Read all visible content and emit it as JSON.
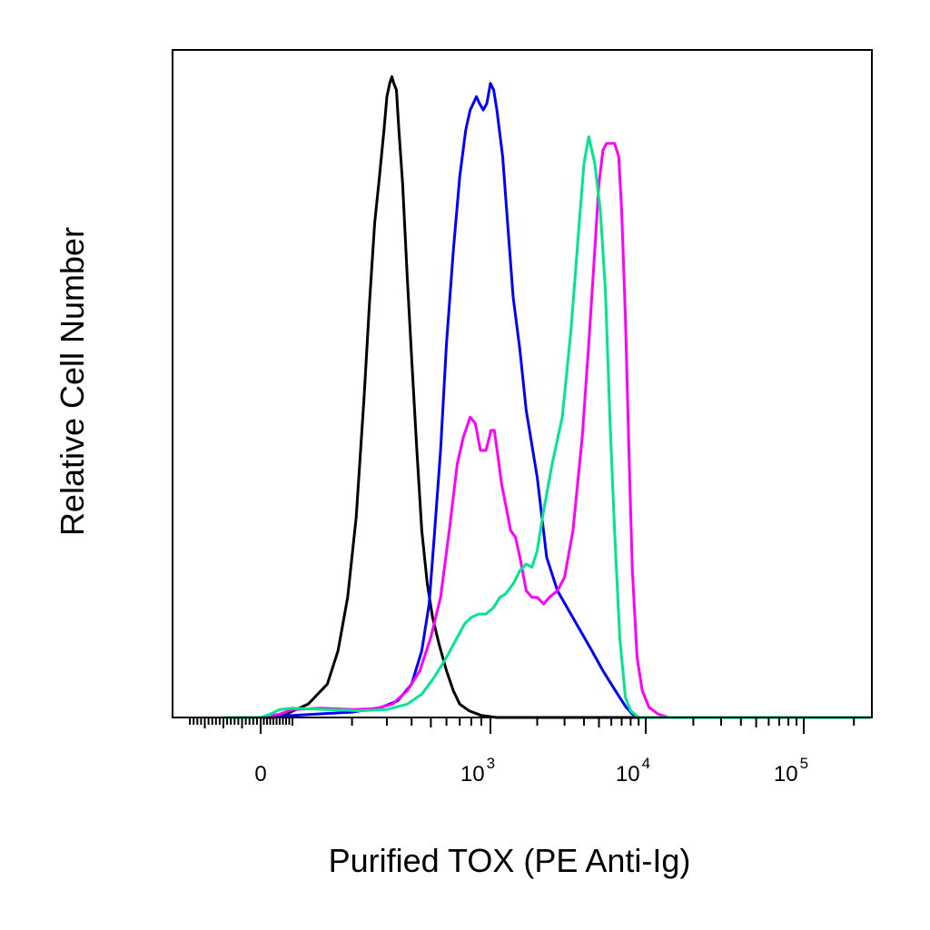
{
  "chart_data": {
    "type": "line",
    "chart_kind": "flow cytometry histogram overlay",
    "title": "",
    "xlabel": "Purified TOX (PE Anti-Ig)",
    "ylabel": "Relative Cell Number",
    "x_scale": "biexponential (logicle)",
    "xlim": [
      -200,
      250000
    ],
    "ylim": [
      0,
      100
    ],
    "grid": false,
    "legend": "none",
    "x_ticks": [
      {
        "value": 0,
        "label": "0"
      },
      {
        "value": 1000,
        "base": "10",
        "exp": "3"
      },
      {
        "value": 10000,
        "base": "10",
        "exp": "4"
      },
      {
        "value": 100000,
        "base": "10",
        "exp": "5"
      }
    ],
    "series": [
      {
        "color": "#000000",
        "points": [
          [
            -100,
            0
          ],
          [
            0,
            0
          ],
          [
            40,
            0
          ],
          [
            80,
            0.5
          ],
          [
            120,
            2
          ],
          [
            150,
            5
          ],
          [
            170,
            10
          ],
          [
            190,
            18
          ],
          [
            210,
            30
          ],
          [
            230,
            48
          ],
          [
            245,
            62
          ],
          [
            260,
            74
          ],
          [
            275,
            81
          ],
          [
            290,
            88
          ],
          [
            300,
            93
          ],
          [
            310,
            95
          ],
          [
            318,
            96
          ],
          [
            325,
            95
          ],
          [
            335,
            94
          ],
          [
            345,
            88
          ],
          [
            360,
            80
          ],
          [
            380,
            66
          ],
          [
            400,
            54
          ],
          [
            425,
            40
          ],
          [
            450,
            28
          ],
          [
            480,
            20
          ],
          [
            510,
            15
          ],
          [
            550,
            11
          ],
          [
            600,
            7
          ],
          [
            650,
            4
          ],
          [
            700,
            2
          ],
          [
            780,
            1
          ],
          [
            900,
            0.3
          ],
          [
            1100,
            0
          ],
          [
            250000,
            0
          ]
        ]
      },
      {
        "color": "#0000ff",
        "points": [
          [
            -100,
            0
          ],
          [
            0,
            0
          ],
          [
            100,
            0.3
          ],
          [
            200,
            0.8
          ],
          [
            280,
            1.5
          ],
          [
            340,
            2.5
          ],
          [
            400,
            5
          ],
          [
            450,
            10
          ],
          [
            490,
            17
          ],
          [
            520,
            27
          ],
          [
            560,
            40
          ],
          [
            600,
            56
          ],
          [
            650,
            70
          ],
          [
            700,
            81
          ],
          [
            750,
            88
          ],
          [
            790,
            91
          ],
          [
            820,
            92
          ],
          [
            850,
            93
          ],
          [
            880,
            92
          ],
          [
            920,
            91
          ],
          [
            960,
            92
          ],
          [
            1000,
            95
          ],
          [
            1050,
            94
          ],
          [
            1100,
            91
          ],
          [
            1200,
            84
          ],
          [
            1300,
            73
          ],
          [
            1400,
            63
          ],
          [
            1550,
            55
          ],
          [
            1700,
            46
          ],
          [
            2000,
            36
          ],
          [
            2300,
            24
          ],
          [
            2700,
            19
          ],
          [
            3200,
            16
          ],
          [
            3800,
            13
          ],
          [
            4500,
            10
          ],
          [
            5300,
            7
          ],
          [
            6000,
            5
          ],
          [
            6800,
            3
          ],
          [
            7500,
            1.5
          ],
          [
            8200,
            0.5
          ],
          [
            9000,
            0
          ],
          [
            250000,
            0
          ]
        ]
      },
      {
        "color": "#ff00ff",
        "points": [
          [
            -100,
            0
          ],
          [
            0,
            0
          ],
          [
            60,
            0.5
          ],
          [
            100,
            1.2
          ],
          [
            140,
            1.4
          ],
          [
            200,
            1.2
          ],
          [
            260,
            1.3
          ],
          [
            320,
            2
          ],
          [
            380,
            4
          ],
          [
            440,
            7
          ],
          [
            500,
            12
          ],
          [
            560,
            18
          ],
          [
            620,
            28
          ],
          [
            680,
            38
          ],
          [
            730,
            42
          ],
          [
            790,
            45
          ],
          [
            840,
            44
          ],
          [
            890,
            40
          ],
          [
            950,
            40
          ],
          [
            1010,
            43
          ],
          [
            1060,
            43
          ],
          [
            1120,
            39
          ],
          [
            1180,
            35
          ],
          [
            1250,
            32
          ],
          [
            1350,
            28
          ],
          [
            1450,
            27
          ],
          [
            1550,
            24
          ],
          [
            1700,
            19
          ],
          [
            1850,
            18
          ],
          [
            2000,
            18
          ],
          [
            2200,
            17
          ],
          [
            2400,
            18
          ],
          [
            2700,
            19
          ],
          [
            3000,
            21
          ],
          [
            3400,
            28
          ],
          [
            3900,
            42
          ],
          [
            4300,
            56
          ],
          [
            4700,
            70
          ],
          [
            5000,
            80
          ],
          [
            5300,
            85
          ],
          [
            5600,
            86
          ],
          [
            6000,
            86
          ],
          [
            6300,
            86
          ],
          [
            6700,
            84
          ],
          [
            7000,
            76
          ],
          [
            7400,
            60
          ],
          [
            7800,
            40
          ],
          [
            8200,
            22
          ],
          [
            8800,
            9
          ],
          [
            9500,
            4
          ],
          [
            10500,
            1.5
          ],
          [
            12000,
            0.5
          ],
          [
            14000,
            0
          ],
          [
            250000,
            0
          ]
        ]
      },
      {
        "color": "#00e68a",
        "points": [
          [
            -100,
            0
          ],
          [
            0,
            0
          ],
          [
            30,
            0.5
          ],
          [
            60,
            1.2
          ],
          [
            100,
            1.4
          ],
          [
            150,
            1.2
          ],
          [
            220,
            1
          ],
          [
            300,
            1.2
          ],
          [
            380,
            2
          ],
          [
            450,
            3.5
          ],
          [
            520,
            6
          ],
          [
            600,
            9
          ],
          [
            680,
            12
          ],
          [
            740,
            14
          ],
          [
            800,
            15
          ],
          [
            870,
            15.5
          ],
          [
            950,
            15.5
          ],
          [
            1050,
            16.5
          ],
          [
            1150,
            18
          ],
          [
            1250,
            18.5
          ],
          [
            1400,
            20
          ],
          [
            1550,
            22
          ],
          [
            1700,
            23
          ],
          [
            1850,
            22.5
          ],
          [
            2000,
            25
          ],
          [
            2200,
            31
          ],
          [
            2500,
            38
          ],
          [
            2900,
            45
          ],
          [
            3300,
            58
          ],
          [
            3700,
            73
          ],
          [
            4000,
            83
          ],
          [
            4300,
            87
          ],
          [
            4700,
            83
          ],
          [
            5100,
            76
          ],
          [
            5500,
            64
          ],
          [
            5900,
            44
          ],
          [
            6300,
            28
          ],
          [
            6800,
            12
          ],
          [
            7400,
            3
          ],
          [
            8000,
            1
          ],
          [
            9000,
            0
          ],
          [
            250000,
            0
          ]
        ]
      }
    ]
  }
}
